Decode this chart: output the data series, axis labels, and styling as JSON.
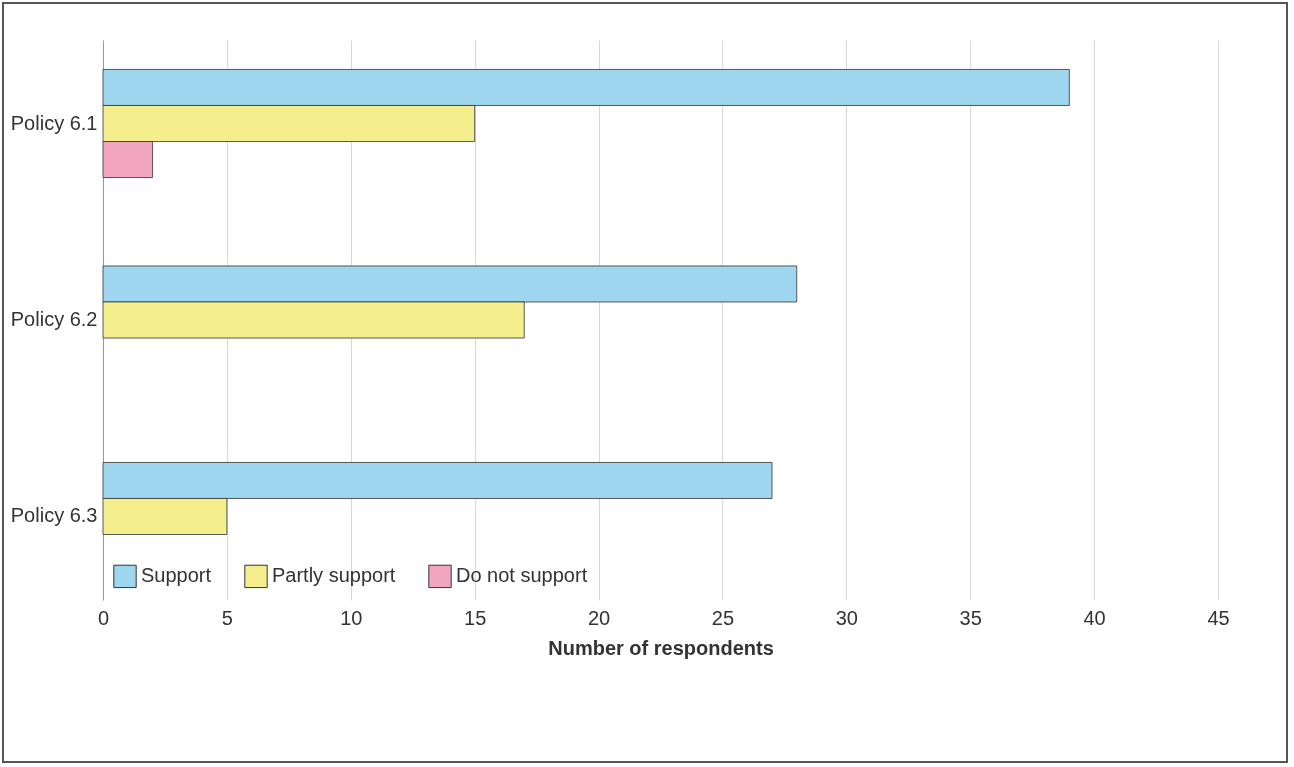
{
  "chart_data": {
    "type": "bar",
    "orientation": "horizontal",
    "xlabel": "Number of respondents",
    "categories": [
      "Policy 6.1",
      "Policy 6.2",
      "Policy 6.3"
    ],
    "series": [
      {
        "name": "Support",
        "color": "#9dd6ee",
        "values": [
          39,
          28,
          27
        ]
      },
      {
        "name": "Partly support",
        "color": "#f4ef8c",
        "values": [
          15,
          17,
          5
        ]
      },
      {
        "name": "Do not support",
        "color": "#f2a6c0",
        "values": [
          2,
          null,
          null
        ]
      }
    ],
    "xlim": [
      0,
      45
    ],
    "xticks": [
      0,
      5,
      10,
      15,
      20,
      25,
      30,
      35,
      40,
      45
    ],
    "grid": "x",
    "legend": "bottom left"
  }
}
